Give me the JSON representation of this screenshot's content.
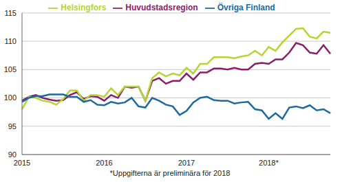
{
  "chart_data": {
    "type": "line",
    "annotation": "*Uppgifterna är preliminära för 2018",
    "categories": [
      "2015",
      null,
      null,
      null,
      null,
      null,
      null,
      null,
      null,
      null,
      null,
      null,
      "2016",
      null,
      null,
      null,
      null,
      null,
      null,
      null,
      null,
      null,
      null,
      null,
      "2017",
      null,
      null,
      null,
      null,
      null,
      null,
      null,
      null,
      null,
      null,
      null,
      "2018*",
      null,
      null,
      null,
      null,
      null,
      null,
      null,
      null,
      null
    ],
    "series": [
      {
        "name": "Huvudstadsregion",
        "color": "#8b1e69",
        "values": [
          99.5,
          100.2,
          100.5,
          100,
          99.7,
          99.5,
          99.6,
          100.5,
          101,
          99.8,
          100.3,
          100.2,
          99.5,
          100.5,
          100,
          102,
          101.8,
          102,
          99.5,
          103,
          103.5,
          102.5,
          103,
          103,
          104.3,
          103.2,
          104.5,
          104.5,
          105.2,
          105.2,
          105,
          105.3,
          105,
          105,
          106,
          106.2,
          106,
          106.8,
          106.8,
          108,
          109.7,
          109.3,
          108,
          107.8,
          109.3,
          107.8
        ]
      },
      {
        "name": "Helsingfors",
        "color": "#b7d334",
        "values": [
          98,
          100.2,
          100,
          99.5,
          99.3,
          98.8,
          99.8,
          101.3,
          101.3,
          99.5,
          100.5,
          100.5,
          100.2,
          101.7,
          100.5,
          102,
          102,
          102,
          99.5,
          103.5,
          104.5,
          103.8,
          104.3,
          104,
          105.3,
          104.3,
          106,
          106,
          107.2,
          107.2,
          107.2,
          107,
          107.3,
          107.5,
          108.3,
          107.5,
          109,
          108.3,
          109.8,
          111,
          112.2,
          112.3,
          110.8,
          110.5,
          111.7,
          111.5
        ]
      },
      {
        "name": "Övriga Finland",
        "color": "#1a6aa0",
        "values": [
          99.3,
          100,
          100.3,
          100.3,
          100.6,
          100.6,
          100.6,
          100.2,
          100.2,
          99.3,
          99.6,
          98.8,
          98.7,
          99.3,
          99,
          99.2,
          100,
          98.5,
          98.3,
          100,
          99.5,
          98.8,
          98.5,
          97,
          97.7,
          99.2,
          100,
          100.2,
          99.6,
          99.5,
          99.5,
          99,
          99.2,
          99.3,
          98,
          97.8,
          96.3,
          97.3,
          96.3,
          98.3,
          98.5,
          98.2,
          98.7,
          97.8,
          98,
          97.3
        ]
      }
    ],
    "ylim": [
      90,
      115
    ],
    "yticks": [
      90,
      95,
      100,
      105,
      110,
      115
    ],
    "grid": true,
    "legend": "top"
  }
}
